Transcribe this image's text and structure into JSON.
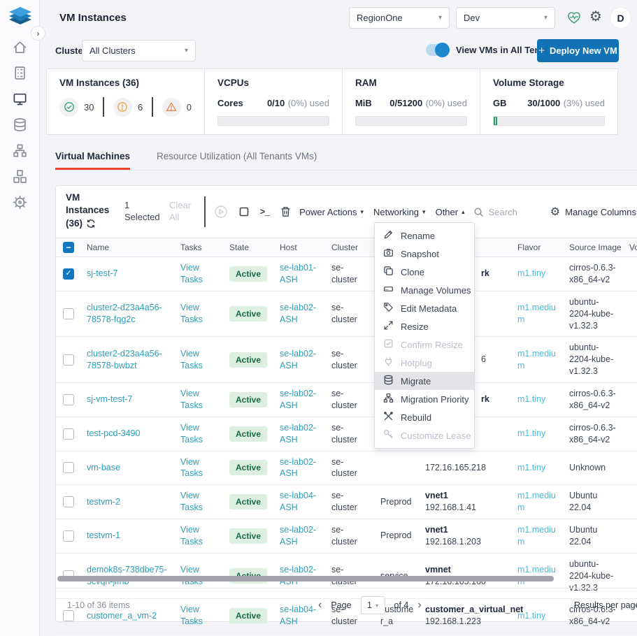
{
  "header": {
    "title": "VM Instances",
    "region_selector": "RegionOne",
    "tenant_selector": "Dev",
    "avatar_initial": "D"
  },
  "filter_bar": {
    "cluster_label": "Cluster",
    "cluster_value": "All Clusters",
    "toggle_label": "View VMs in All Tenants",
    "deploy_plus": "+",
    "deploy_button": "Deploy New VM"
  },
  "summary_cards": {
    "vm_instances": {
      "title": "VM Instances (36)",
      "ok": "30",
      "warning": "6",
      "error": "0"
    },
    "vcpus": {
      "title": "VCPUs",
      "unit": "Cores",
      "value": "0/10",
      "pct_text": "(0%) used",
      "pct": 0
    },
    "ram": {
      "title": "RAM",
      "unit": "MiB",
      "value": "0/51200",
      "pct_text": "(0%) used",
      "pct": 0
    },
    "storage": {
      "title": "Volume Storage",
      "unit": "GB",
      "value": "30/1000",
      "pct_text": "(3%) used",
      "pct": 3
    }
  },
  "tabs": [
    {
      "label": "Virtual Machines",
      "active": true
    },
    {
      "label": "Resource Utilization (All Tenants VMs)",
      "active": false
    }
  ],
  "table": {
    "title": "VM Instances (36)",
    "selected_count": "1 Selected",
    "clear_all": "Clear All",
    "menus": [
      {
        "label": "Power Actions",
        "caret": "▾"
      },
      {
        "label": "Networking",
        "caret": "▾"
      },
      {
        "label": "Other",
        "caret": "▴"
      }
    ],
    "search_placeholder": "Search",
    "manage_columns": "Manage Columns",
    "columns": [
      "Name",
      "Tasks",
      "State",
      "Host",
      "Cluster",
      "",
      "",
      "Flavor",
      "Source Image",
      "Volume"
    ],
    "rows": [
      {
        "name": "sj-test-7",
        "checked": true,
        "tasks": "View Tasks",
        "state": "Active",
        "host": "se-lab01-ASH",
        "cluster": "se-cluster",
        "tenant": "",
        "net_name": "",
        "net_ip": "",
        "net_frag": "rk",
        "net_frag_bold": true,
        "flavor": "m1.tiny",
        "image": "cirros-0.6.3-x86_64-v2"
      },
      {
        "name": "cluster2-d23a4a56-78578-fqg2c",
        "checked": false,
        "tasks": "View Tasks",
        "state": "Active",
        "host": "se-lab02-ASH",
        "cluster": "se-cluster",
        "tenant": "",
        "net_name": "",
        "net_ip": "",
        "net_frag": "",
        "net_frag_bold": false,
        "flavor": "m1.medium",
        "image": "ubuntu-2204-kube-v1.32.3"
      },
      {
        "name": "cluster2-d23a4a56-78578-bwbzt",
        "checked": false,
        "tasks": "View Tasks",
        "state": "Active",
        "host": "se-lab02-ASH",
        "cluster": "se-cluster",
        "tenant": "",
        "net_name": "",
        "net_ip": "",
        "net_frag": "6",
        "net_frag_bold": false,
        "flavor": "m1.medium",
        "image": "ubuntu-2204-kube-v1.32.3"
      },
      {
        "name": "sj-vm-test-7",
        "checked": false,
        "tasks": "View Tasks",
        "state": "Active",
        "host": "se-lab02-ASH",
        "cluster": "se-cluster",
        "tenant": "",
        "net_name": "",
        "net_ip": "",
        "net_frag": "rk",
        "net_frag_bold": true,
        "flavor": "m1.tiny",
        "image": "cirros-0.6.3-x86_64-v2"
      },
      {
        "name": "test-pcd-3490",
        "checked": false,
        "tasks": "View Tasks",
        "state": "Active",
        "host": "se-lab02-ASH",
        "cluster": "se-cluster",
        "tenant": "",
        "net_name": "",
        "net_ip": "",
        "net_frag": "",
        "net_frag_bold": false,
        "flavor": "m1.tiny",
        "image": "cirros-0.6.3-x86_64-v2"
      },
      {
        "name": "vm-base",
        "checked": false,
        "tasks": "View Tasks",
        "state": "Active",
        "host": "se-lab02-ASH",
        "cluster": "se-cluster",
        "tenant": "",
        "net_name": "",
        "net_ip": "172.16.165.218",
        "net_frag": "",
        "net_frag_bold": false,
        "flavor": "m1.tiny",
        "image": "Unknown"
      },
      {
        "name": "testvm-2",
        "checked": false,
        "tasks": "View Tasks",
        "state": "Active",
        "host": "se-lab04-ASH",
        "cluster": "se-cluster",
        "tenant": "Preprod",
        "net_name": "vnet1",
        "net_ip": "192.168.1.41",
        "net_frag": "",
        "net_frag_bold": false,
        "flavor": "m1.medium",
        "image": "Ubuntu 22.04"
      },
      {
        "name": "testvm-1",
        "checked": false,
        "tasks": "View Tasks",
        "state": "Active",
        "host": "se-lab02-ASH",
        "cluster": "se-cluster",
        "tenant": "Preprod",
        "net_name": "vnet1",
        "net_ip": "192.168.1.203",
        "net_frag": "",
        "net_frag_bold": false,
        "flavor": "m1.medium",
        "image": "Ubuntu 22.04"
      },
      {
        "name": "demok8s-738dbe75-5cvqh-jlfnb",
        "checked": false,
        "tasks": "View Tasks",
        "state": "Active",
        "host": "se-lab02-ASH",
        "cluster": "se-cluster",
        "tenant": "service",
        "net_name": "vmnet",
        "net_ip": "172.16.165.160",
        "net_frag": "",
        "net_frag_bold": false,
        "flavor": "m1.medium",
        "image": "ubuntu-2204-kube-v1.32.3"
      },
      {
        "name": "customer_a_vm-2",
        "checked": false,
        "tasks": "View Tasks",
        "state": "Active",
        "host": "se-lab04-ASH",
        "cluster": "se-cluster",
        "tenant": "customer_a",
        "net_name": "customer_a_virtual_net",
        "net_ip": "192.168.1.223",
        "net_frag": "",
        "net_frag_bold": false,
        "flavor": "m1.tiny",
        "image": "cirros-0.6.3-x86_64-v2"
      }
    ],
    "footer": {
      "range": "1-10 of 36 items",
      "page_label": "Page",
      "page_value": "1",
      "of_label": "of 4",
      "results_label": "Results per page"
    }
  },
  "context_menu": {
    "items": [
      {
        "label": "Rename",
        "icon": "pencil-icon",
        "disabled": false,
        "highlighted": false
      },
      {
        "label": "Snapshot",
        "icon": "camera-icon",
        "disabled": false,
        "highlighted": false
      },
      {
        "label": "Clone",
        "icon": "copy-icon",
        "disabled": false,
        "highlighted": false
      },
      {
        "label": "Manage Volumes",
        "icon": "drive-icon",
        "disabled": false,
        "highlighted": false
      },
      {
        "label": "Edit Metadata",
        "icon": "tag-icon",
        "disabled": false,
        "highlighted": false
      },
      {
        "label": "Resize",
        "icon": "resize-icon",
        "disabled": false,
        "highlighted": false
      },
      {
        "label": "Confirm Resize",
        "icon": "checkbox-icon",
        "disabled": true,
        "highlighted": false
      },
      {
        "label": "Hotplug",
        "icon": "plug-icon",
        "disabled": true,
        "highlighted": false
      },
      {
        "label": "Migrate",
        "icon": "database-icon",
        "disabled": false,
        "highlighted": true
      },
      {
        "label": "Migration Priority",
        "icon": "orgchart-icon",
        "disabled": false,
        "highlighted": false
      },
      {
        "label": "Rebuild",
        "icon": "tools-icon",
        "disabled": false,
        "highlighted": false
      },
      {
        "label": "Customize Lease",
        "icon": "key-icon",
        "disabled": true,
        "highlighted": false
      }
    ]
  },
  "sidebar": {
    "items": [
      {
        "icon": "home-icon",
        "active": false
      },
      {
        "icon": "rack-icon",
        "active": false
      },
      {
        "icon": "monitor-icon",
        "active": true
      },
      {
        "icon": "database-icon",
        "active": false
      },
      {
        "icon": "network-icon",
        "active": false
      },
      {
        "icon": "cubes-icon",
        "active": false
      },
      {
        "icon": "helm-icon",
        "active": false
      }
    ]
  },
  "colors": {
    "accent_blue": "#1172b6",
    "link_teal": "#2b9fb8",
    "flavor_cyan": "#49bcd8",
    "tab_red": "#e8432d",
    "badge_green_bg": "#dcefe1",
    "badge_green_text": "#1a6b3f",
    "health_green": "#3f9d71"
  }
}
